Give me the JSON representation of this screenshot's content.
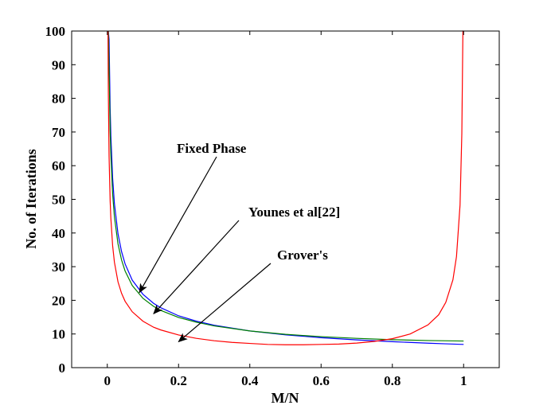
{
  "chart_data": {
    "type": "line",
    "title": "",
    "xlabel": "M/N",
    "ylabel": "No. of Iterations",
    "xlim": [
      -0.1,
      1.1
    ],
    "ylim": [
      0,
      100
    ],
    "xticks": [
      0,
      0.2,
      0.4,
      0.6,
      0.8,
      1
    ],
    "xtick_labels": [
      "0",
      "0.2",
      "0.4",
      "0.6",
      "0.8",
      "1"
    ],
    "yticks": [
      0,
      10,
      20,
      30,
      40,
      50,
      60,
      70,
      80,
      90,
      100
    ],
    "ytick_labels": [
      "0",
      "10",
      "20",
      "30",
      "40",
      "50",
      "60",
      "70",
      "80",
      "90",
      "100"
    ],
    "grid": false,
    "series": [
      {
        "name": "Fixed Phase",
        "color": "#0000ff",
        "x": [
          0.003,
          0.005,
          0.008,
          0.01,
          0.015,
          0.02,
          0.03,
          0.04,
          0.05,
          0.07,
          0.1,
          0.13,
          0.15,
          0.2,
          0.25,
          0.3,
          0.4,
          0.5,
          0.6,
          0.7,
          0.8,
          0.9,
          0.95,
          0.99,
          1.0
        ],
        "y": [
          100,
          97.5,
          77.1,
          69.0,
          56.3,
          48.7,
          39.8,
          34.5,
          30.8,
          26.0,
          21.8,
          19.1,
          17.8,
          15.4,
          13.8,
          12.6,
          10.9,
          9.75,
          8.9,
          8.24,
          7.71,
          7.27,
          7.08,
          6.93,
          6.9
        ]
      },
      {
        "name": "Younes et al[22]",
        "color": "#008000",
        "x": [
          0.003,
          0.005,
          0.008,
          0.01,
          0.015,
          0.02,
          0.03,
          0.04,
          0.05,
          0.07,
          0.1,
          0.13,
          0.15,
          0.2,
          0.25,
          0.3,
          0.4,
          0.5,
          0.6,
          0.7,
          0.8,
          0.9,
          1.0
        ],
        "y": [
          100,
          89.0,
          70.4,
          63.1,
          51.6,
          44.8,
          36.8,
          32.0,
          28.7,
          24.4,
          20.6,
          18.2,
          17.0,
          14.9,
          13.5,
          12.4,
          10.9,
          9.9,
          9.2,
          8.7,
          8.3,
          8.05,
          7.9
        ]
      },
      {
        "name": "Grover's",
        "color": "#ff0000",
        "x": [
          0.002,
          0.003,
          0.005,
          0.008,
          0.01,
          0.015,
          0.02,
          0.03,
          0.04,
          0.05,
          0.07,
          0.1,
          0.13,
          0.15,
          0.2,
          0.25,
          0.3,
          0.35,
          0.4,
          0.45,
          0.5,
          0.55,
          0.6,
          0.65,
          0.7,
          0.75,
          0.8,
          0.85,
          0.9,
          0.93,
          0.95,
          0.97,
          0.98,
          0.99,
          0.995,
          0.998,
          0.999
        ],
        "y": [
          100,
          81,
          62.8,
          49.6,
          44.4,
          36.2,
          31.3,
          25.5,
          22.1,
          19.7,
          16.6,
          13.8,
          12.0,
          11.2,
          9.7,
          8.7,
          8.0,
          7.5,
          7.2,
          6.9,
          6.8,
          6.8,
          6.9,
          7.0,
          7.3,
          7.8,
          8.6,
          10.0,
          12.7,
          15.7,
          19.4,
          26.1,
          33.0,
          48.3,
          69.5,
          100,
          100
        ]
      }
    ],
    "annotations": [
      {
        "text": "Fixed Phase",
        "points_to": [
          0.09,
          22.3
        ]
      },
      {
        "text": "Younes et al[22]",
        "points_to": [
          0.13,
          16.0
        ]
      },
      {
        "text": "Grover's",
        "points_to": [
          0.2,
          7.7
        ]
      }
    ]
  }
}
